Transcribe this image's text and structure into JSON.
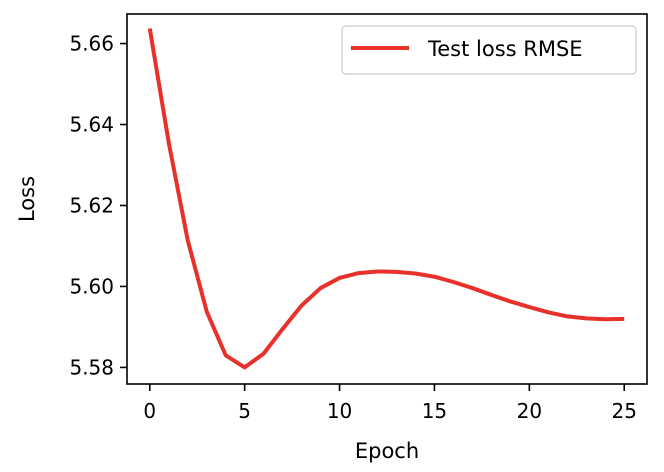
{
  "chart_data": {
    "type": "line",
    "title": "",
    "xlabel": "Epoch",
    "ylabel": "Loss",
    "xlim": [
      -1.2,
      26.2
    ],
    "ylim": [
      5.5759,
      5.6673
    ],
    "xticks": [
      0,
      5,
      10,
      15,
      20,
      25
    ],
    "xtick_labels": [
      "0",
      "5",
      "10",
      "15",
      "20",
      "25"
    ],
    "yticks": [
      5.58,
      5.6,
      5.62,
      5.64,
      5.66
    ],
    "ytick_labels": [
      "5.58",
      "5.60",
      "5.62",
      "5.64",
      "5.66"
    ],
    "grid": false,
    "legend": {
      "position": "top-right"
    },
    "series": [
      {
        "name": "Test loss RMSE",
        "color": "#e8312a",
        "x": [
          0,
          1,
          2,
          3,
          4,
          5,
          6,
          7,
          8,
          9,
          10,
          11,
          12,
          13,
          14,
          15,
          16,
          17,
          18,
          19,
          20,
          21,
          22,
          23,
          24,
          25
        ],
        "y": [
          5.6637,
          5.6355,
          5.6114,
          5.5938,
          5.583,
          5.58,
          5.5834,
          5.5895,
          5.5953,
          5.5996,
          5.6021,
          5.6033,
          5.6037,
          5.6036,
          5.6032,
          5.6024,
          5.6011,
          5.5996,
          5.5979,
          5.5963,
          5.5949,
          5.5936,
          5.5926,
          5.5921,
          5.5919,
          5.592
        ]
      }
    ]
  }
}
